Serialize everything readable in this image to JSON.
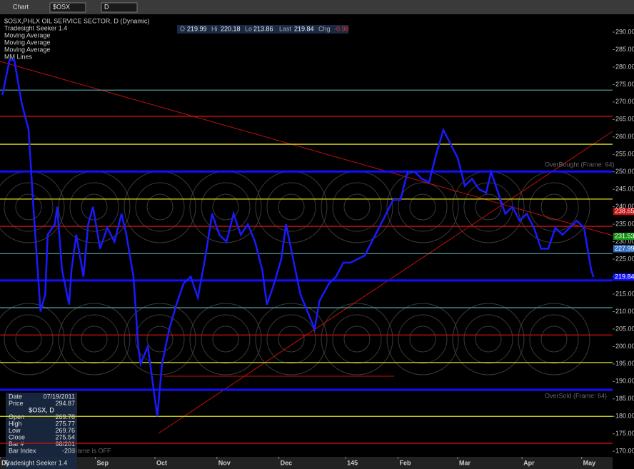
{
  "toolbar": {
    "title": "Chart",
    "symbol": "$OSX",
    "interval": "D"
  },
  "ohlc_bar": {
    "o_label": "O",
    "o": 219.99,
    "hi_label": "Hi",
    "hi": 220.18,
    "lo_label": "Lo",
    "lo": 213.86,
    "last_label": "Last",
    "last": 219.84,
    "chg_label": "Chg",
    "chg": -0.98
  },
  "info_panel": {
    "rows": [
      [
        "Date",
        "07/19/2011"
      ],
      [
        "Price",
        "294.87"
      ]
    ],
    "symbol": "$OSX, D",
    "rows2": [
      [
        "Open",
        "269.78"
      ],
      [
        "High",
        "275.77"
      ],
      [
        "Low",
        "269.76"
      ],
      [
        "Close",
        "275.54"
      ],
      [
        "Bar #",
        "98/201"
      ],
      [
        "Bar Index",
        "-203"
      ]
    ],
    "footer": "Tradesight Seeker 1.4",
    "frame_note": "Frame is OFF"
  },
  "chart_data": {
    "type": "line",
    "title": "$OSX,PHLX OIL SERVICE SECTOR, D (Dynamic)",
    "indicators": [
      "Tradesight Seeker 1.4",
      "Moving Average",
      "Moving Average",
      "Moving Average",
      "MM Lines"
    ],
    "annotations": [
      "OverBought (Frame: 64)",
      "OverSold (Frame: 64)"
    ],
    "x": [
      1,
      4,
      6,
      9,
      12,
      14,
      17,
      19,
      20,
      23,
      24,
      26,
      29,
      30,
      32,
      35,
      37,
      39,
      41,
      42,
      45,
      48,
      51,
      53,
      56,
      58,
      59,
      62,
      63,
      65,
      66,
      68,
      71,
      74,
      77,
      80,
      83,
      86,
      89,
      92,
      95,
      98,
      101,
      104,
      107,
      110,
      112,
      115,
      118,
      120,
      123,
      126,
      129,
      132,
      134,
      138,
      141,
      144,
      147,
      150,
      153,
      156,
      159,
      162,
      165,
      168,
      171,
      174,
      177,
      180,
      183,
      186,
      189,
      192,
      195,
      198,
      201,
      204,
      206,
      209,
      212,
      215,
      218,
      221,
      224,
      227,
      230,
      233,
      236,
      239,
      242,
      245,
      247,
      248,
      249
    ],
    "values": [
      272,
      282,
      282,
      270,
      262,
      240,
      210,
      215,
      232,
      235,
      240,
      222,
      212,
      222,
      232,
      220,
      235,
      240,
      232,
      228,
      234,
      230,
      238,
      232,
      220,
      200,
      195,
      200,
      195,
      185,
      180,
      195,
      205,
      212,
      218,
      220,
      214,
      225,
      238,
      232,
      230,
      238,
      232,
      235,
      230,
      222,
      212,
      218,
      225,
      235,
      225,
      215,
      210,
      205,
      213,
      218,
      220,
      224,
      224,
      225,
      226,
      230,
      234,
      238,
      242,
      242,
      250,
      250,
      248,
      247,
      255,
      262,
      258,
      254,
      246,
      248,
      245,
      244,
      250,
      244,
      238,
      240,
      236,
      238,
      234,
      228,
      228,
      234,
      232,
      234,
      236,
      234,
      226,
      222,
      219.84
    ],
    "color": "#1a1aff",
    "xlim": [
      0,
      257
    ],
    "xticks": [
      {
        "value": 0,
        "label": "Dy"
      },
      {
        "value": 40,
        "label": "Sep"
      },
      {
        "value": 65,
        "label": "Oct"
      },
      {
        "value": 91,
        "label": "Nov"
      },
      {
        "value": 117,
        "label": "Dec"
      },
      145,
      {
        "value": 167,
        "label": "Feb"
      },
      {
        "value": 192,
        "label": "Mar"
      },
      {
        "value": 219,
        "label": "Apr"
      },
      {
        "value": 244,
        "label": "May"
      }
    ],
    "ylim": [
      168.4,
      294.7
    ],
    "yticks": [
      {
        "value": 170,
        "label": "170.00"
      },
      {
        "value": 175,
        "label": "175.00"
      },
      {
        "value": 180,
        "label": "180.00"
      },
      {
        "value": 185,
        "label": "185.00"
      },
      {
        "value": 190,
        "label": "190.00"
      },
      {
        "value": 195,
        "label": "195.00"
      },
      {
        "value": 200,
        "label": "200.00"
      },
      {
        "value": 205,
        "label": "205.00"
      },
      {
        "value": 210,
        "label": "210.00"
      },
      {
        "value": 215,
        "label": "215.00"
      },
      {
        "value": 220,
        "label": "220.00"
      },
      {
        "value": 225,
        "label": "225.00"
      },
      {
        "value": 230,
        "label": "230.00"
      },
      {
        "value": 235,
        "label": "235.00"
      },
      {
        "value": 240,
        "label": "240.00"
      },
      {
        "value": 245,
        "label": "245.00"
      },
      {
        "value": 250,
        "label": "250.00"
      },
      {
        "value": 255,
        "label": "255.00"
      },
      {
        "value": 260,
        "label": "260.00"
      },
      {
        "value": 265,
        "label": "265.00"
      },
      {
        "value": 270,
        "label": "270.00"
      },
      {
        "value": 275,
        "label": "275.00"
      },
      {
        "value": 280,
        "label": "280.00"
      },
      {
        "value": 285,
        "label": "285.00"
      },
      {
        "value": 290,
        "label": "290.00"
      }
    ],
    "levels": [
      {
        "value": 273.4,
        "color": "#4a9a9a"
      },
      {
        "value": 265.9,
        "color": "#d01010"
      },
      {
        "value": 257.9,
        "color": "#e0e020"
      },
      {
        "value": 250.1,
        "color": "#1010ff"
      },
      {
        "value": 242.2,
        "color": "#e0e020"
      },
      {
        "value": 234.4,
        "color": "#d01010"
      },
      {
        "value": 226.6,
        "color": "#4a9a9a"
      },
      {
        "value": 218.9,
        "color": "#1010ff"
      },
      {
        "value": 211.1,
        "color": "#4a9a9a"
      },
      {
        "value": 203.3,
        "color": "#d01010"
      },
      {
        "value": 195.4,
        "color": "#e0e020"
      },
      {
        "value": 187.6,
        "color": "#1010ff"
      },
      {
        "value": 180.0,
        "color": "#e0e020"
      },
      {
        "value": 172.3,
        "color": "#d01010"
      }
    ],
    "price_labels": [
      {
        "value": 238.65,
        "color": "#c01010"
      },
      {
        "value": 231.53,
        "color": "#109010"
      },
      {
        "value": 227.99,
        "color": "#3070c0"
      },
      {
        "value": 219.84,
        "color": "#1010ff"
      }
    ]
  }
}
